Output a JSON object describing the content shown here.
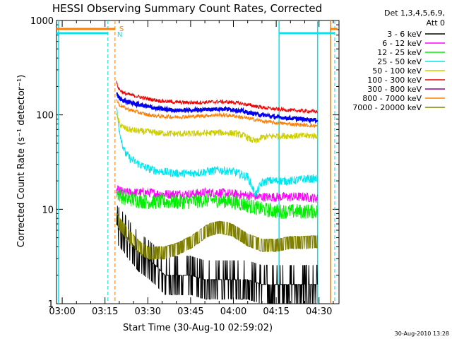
{
  "chart_data": {
    "type": "line",
    "title": "HESSI Observing Summary Count Rates, Corrected",
    "xlabel": "Start Time (30-Aug-10 02:59:02)",
    "ylabel": "Corrected Count Rate (s⁻¹ detector⁻¹)",
    "y_scale": "log",
    "ylim": [
      1,
      1000
    ],
    "xlim_minutes": [
      -2,
      97
    ],
    "x_tick_labels": [
      "03:00",
      "03:15",
      "03:30",
      "03:45",
      "04:00",
      "04:15",
      "04:30"
    ],
    "x_tick_minutes": [
      0,
      15,
      30,
      45,
      60,
      75,
      90
    ],
    "y_tick_labels": [
      "1",
      "10",
      "100",
      "1000"
    ],
    "y_tick_values": [
      1,
      10,
      100,
      1000
    ],
    "legend_title_lines": [
      "Det 1,3,4,5,6,9,",
      "Att 0"
    ],
    "legend_position": "right",
    "data_start_minute": 19,
    "data_end_minute": 89.5,
    "series": [
      {
        "name": "3 - 6 keV",
        "color": "#000000",
        "x": [
          19,
          21,
          24,
          27,
          30,
          33,
          36,
          40,
          45,
          50,
          55,
          60,
          65,
          70,
          75,
          80,
          85,
          89.5
        ],
        "y": [
          7,
          6,
          4.5,
          3.5,
          3,
          2.5,
          2,
          2,
          2,
          1.8,
          1.8,
          1.8,
          1.8,
          1.6,
          1.6,
          1.6,
          1.6,
          1.6
        ]
      },
      {
        "name": "6 - 12 keV",
        "color": "#ff00ff",
        "x": [
          19,
          22,
          26,
          30,
          35,
          40,
          45,
          50,
          55,
          60,
          65,
          70,
          75,
          80,
          85,
          89.5
        ],
        "y": [
          16,
          15,
          15,
          15,
          14.5,
          14.5,
          14.5,
          15,
          15,
          14.5,
          14,
          13.5,
          13.5,
          13.5,
          13.5,
          13
        ]
      },
      {
        "name": "12 - 25 keV",
        "color": "#00ee00",
        "x": [
          19,
          22,
          26,
          30,
          35,
          40,
          45,
          50,
          55,
          60,
          65,
          70,
          75,
          80,
          85,
          89.5
        ],
        "y": [
          15,
          13,
          12.5,
          12,
          12,
          12,
          12,
          12.5,
          12.5,
          12,
          11,
          10,
          9.5,
          9.5,
          9.5,
          9.5
        ]
      },
      {
        "name": "25 - 50 keV",
        "color": "#00e5ee",
        "x": [
          19,
          20,
          21,
          22,
          24,
          27,
          30,
          35,
          40,
          45,
          50,
          55,
          60,
          65,
          66,
          67,
          68,
          69,
          70,
          72,
          75,
          80,
          85,
          89.5
        ],
        "y": [
          120,
          70,
          50,
          40,
          34,
          30,
          27,
          25,
          24,
          24,
          25,
          26,
          25,
          22,
          19,
          16,
          14.5,
          17,
          19,
          20,
          20,
          20,
          21,
          21
        ]
      },
      {
        "name": "50 - 100 keV",
        "color": "#cdcd00",
        "x": [
          19,
          20,
          21,
          23,
          26,
          30,
          35,
          40,
          45,
          50,
          55,
          60,
          62,
          64,
          66,
          68,
          70,
          75,
          80,
          85,
          89.5
        ],
        "y": [
          100,
          82,
          75,
          70,
          68,
          66,
          64,
          63,
          63,
          64,
          65,
          64,
          62,
          60,
          55,
          52,
          58,
          60,
          60,
          60,
          60
        ]
      },
      {
        "name": "100 - 300 keV",
        "color": "#ee0000",
        "x": [
          19,
          20,
          22,
          25,
          30,
          35,
          40,
          45,
          50,
          55,
          60,
          65,
          70,
          75,
          80,
          85,
          89.5
        ],
        "y": [
          220,
          185,
          168,
          160,
          148,
          140,
          136,
          135,
          136,
          138,
          136,
          128,
          120,
          115,
          112,
          110,
          108
        ]
      },
      {
        "name": "300 - 800 keV",
        "color": "#8b008b",
        "x": [
          19,
          20,
          22,
          25,
          30,
          35,
          40,
          45,
          50,
          55,
          60,
          65,
          70,
          75,
          80,
          85,
          89.5
        ],
        "y": [
          170,
          150,
          140,
          132,
          122,
          115,
          112,
          112,
          114,
          116,
          114,
          106,
          100,
          95,
          92,
          90,
          88
        ]
      },
      {
        "name": "800 - 7000 keV",
        "color": "#ff7f00",
        "x": [
          19,
          20,
          22,
          25,
          30,
          35,
          40,
          45,
          50,
          55,
          60,
          65,
          70,
          75,
          80,
          85,
          89.5
        ],
        "y": [
          145,
          128,
          118,
          110,
          100,
          96,
          95,
          96,
          98,
          100,
          98,
          92,
          86,
          82,
          80,
          78,
          76
        ]
      },
      {
        "name": "7000 - 20000 keV",
        "color": "#808000",
        "x": [
          19,
          21,
          24,
          27,
          30,
          33,
          36,
          40,
          45,
          48,
          50,
          52,
          55,
          58,
          60,
          62,
          65,
          70,
          75,
          80,
          85,
          89.5
        ],
        "y": [
          8,
          6.5,
          5,
          4,
          3.5,
          3.5,
          3.5,
          3.8,
          4.5,
          5.2,
          5.8,
          6.2,
          6.5,
          6.3,
          6,
          5.5,
          4.8,
          4.2,
          4.2,
          4.5,
          4.5,
          4.6
        ]
      }
    ],
    "blue_series_color": "#0000ee",
    "annotations": [
      {
        "text": "S",
        "minute": 19,
        "color": "#ff7f00"
      },
      {
        "text": "N",
        "minute": 18.5,
        "color": "#00e5ee"
      }
    ],
    "timestamp": "30-Aug-2010 13:28"
  }
}
